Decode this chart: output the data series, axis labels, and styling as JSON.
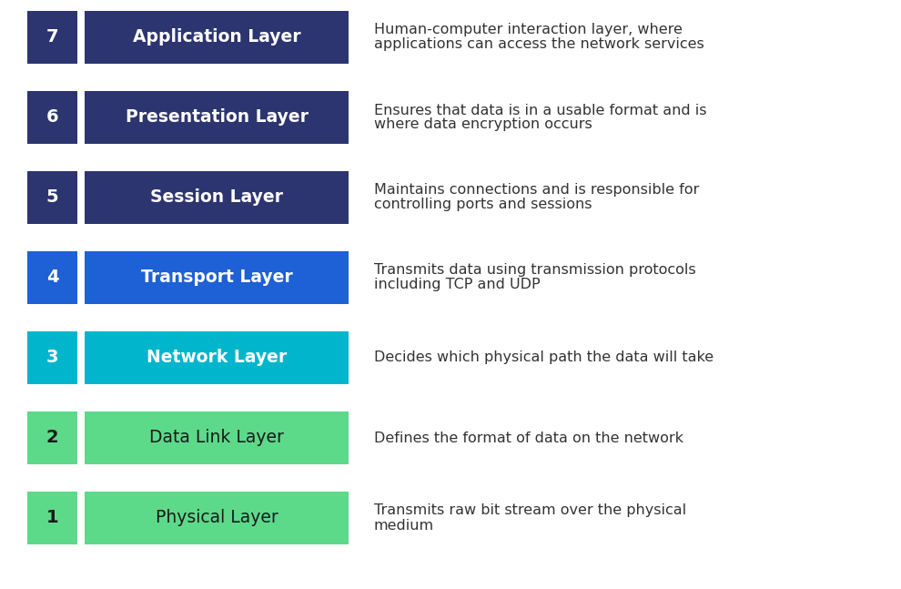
{
  "layers": [
    {
      "number": "7",
      "name": "Application Layer",
      "description": "Human-computer interaction layer, where\napplications can access the network services",
      "bg_color": "#2d3570",
      "text_color": "#ffffff",
      "desc_color": "#333333",
      "name_bold": true
    },
    {
      "number": "6",
      "name": "Presentation Layer",
      "description": "Ensures that data is in a usable format and is\nwhere data encryption occurs",
      "bg_color": "#2d3570",
      "text_color": "#ffffff",
      "desc_color": "#333333",
      "name_bold": true
    },
    {
      "number": "5",
      "name": "Session Layer",
      "description": "Maintains connections and is responsible for\ncontrolling ports and sessions",
      "bg_color": "#2d3570",
      "text_color": "#ffffff",
      "desc_color": "#333333",
      "name_bold": true
    },
    {
      "number": "4",
      "name": "Transport Layer",
      "description": "Transmits data using transmission protocols\nincluding TCP and UDP",
      "bg_color": "#1e60d5",
      "text_color": "#ffffff",
      "desc_color": "#333333",
      "name_bold": true
    },
    {
      "number": "3",
      "name": "Network Layer",
      "description": "Decides which physical path the data will take",
      "bg_color": "#00b5cc",
      "text_color": "#ffffff",
      "desc_color": "#333333",
      "name_bold": true
    },
    {
      "number": "2",
      "name": "Data Link Layer",
      "description": "Defines the format of data on the network",
      "bg_color": "#5dd98a",
      "text_color": "#1a1a1a",
      "desc_color": "#333333",
      "name_bold": false
    },
    {
      "number": "1",
      "name": "Physical Layer",
      "description": "Transmits raw bit stream over the physical\nmedium",
      "bg_color": "#5dd98a",
      "text_color": "#1a1a1a",
      "desc_color": "#333333",
      "name_bold": false
    }
  ],
  "background_color": "#ffffff",
  "fig_width": 9.9,
  "fig_height": 6.47,
  "dpi": 100
}
